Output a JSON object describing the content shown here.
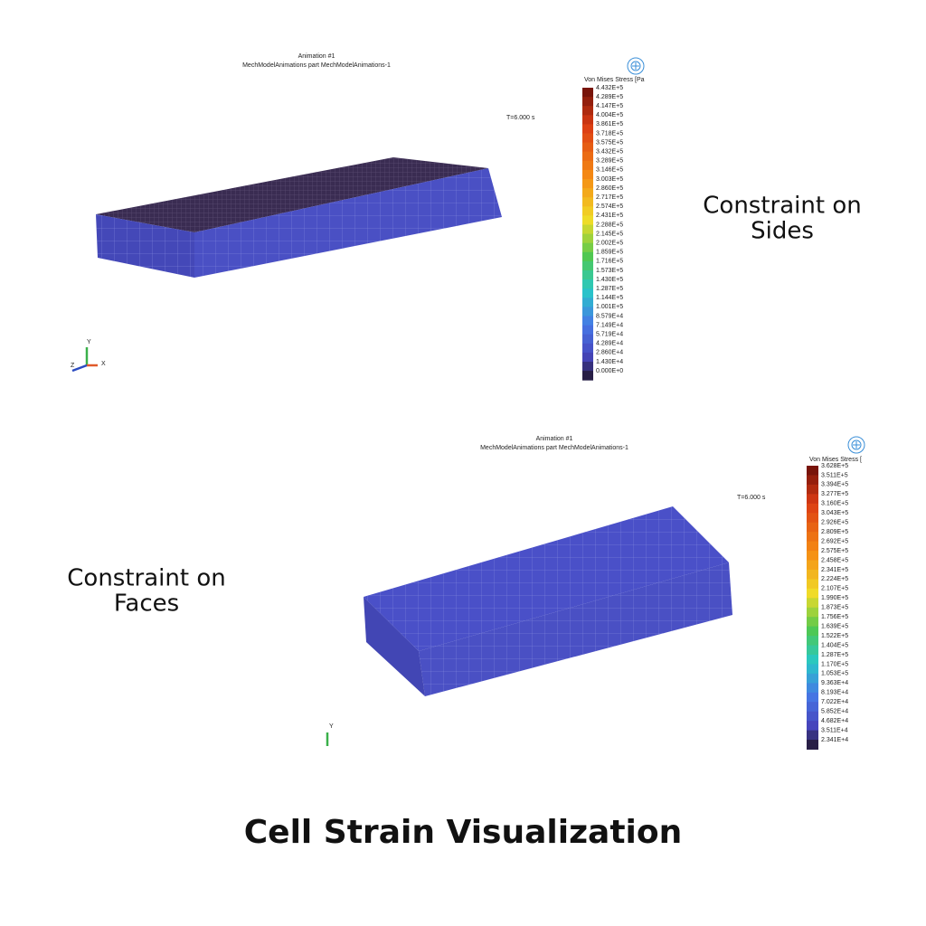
{
  "panels": [
    {
      "title_lines": [
        "Animation #1",
        "MechModelAnimations part MechModelAnimations-1"
      ],
      "time_label": "T=6.000 s",
      "legend": {
        "title": "Von Mises Stress [Pa",
        "labels": [
          "4.432E+5",
          "4.289E+5",
          "4.147E+5",
          "4.004E+5",
          "3.861E+5",
          "3.718E+5",
          "3.575E+5",
          "3.432E+5",
          "3.289E+5",
          "3.146E+5",
          "3.003E+5",
          "2.860E+5",
          "2.717E+5",
          "2.574E+5",
          "2.431E+5",
          "2.288E+5",
          "2.145E+5",
          "2.002E+5",
          "1.859E+5",
          "1.716E+5",
          "1.573E+5",
          "1.430E+5",
          "1.287E+5",
          "1.144E+5",
          "1.001E+5",
          "8.579E+4",
          "7.149E+4",
          "5.719E+4",
          "4.289E+4",
          "2.860E+4",
          "1.430E+4",
          "0.000E+0"
        ]
      },
      "axis_labels": [
        "Y",
        "Z",
        "X"
      ],
      "caption_lines": [
        "Constraint on",
        "Sides"
      ]
    },
    {
      "title_lines": [
        "Animation #1",
        "MechModelAnimations part MechModelAnimations-1"
      ],
      "time_label": "T=6.000 s",
      "legend": {
        "title": "Von Mises Stress [",
        "labels": [
          "3.628E+5",
          "3.511E+5",
          "3.394E+5",
          "3.277E+5",
          "3.160E+5",
          "3.043E+5",
          "2.926E+5",
          "2.809E+5",
          "2.692E+5",
          "2.575E+5",
          "2.458E+5",
          "2.341E+5",
          "2.224E+5",
          "2.107E+5",
          "1.990E+5",
          "1.873E+5",
          "1.756E+5",
          "1.639E+5",
          "1.522E+5",
          "1.404E+5",
          "1.287E+5",
          "1.170E+5",
          "1.053E+5",
          "9.363E+4",
          "8.193E+4",
          "7.022E+4",
          "5.852E+4",
          "4.682E+4",
          "3.511E+4",
          "2.341E+4"
        ]
      },
      "axis_labels": [
        "Y"
      ],
      "caption_lines": [
        "Constraint on",
        "Faces"
      ]
    }
  ],
  "footer": {
    "title": "Cell Strain Visualization"
  }
}
